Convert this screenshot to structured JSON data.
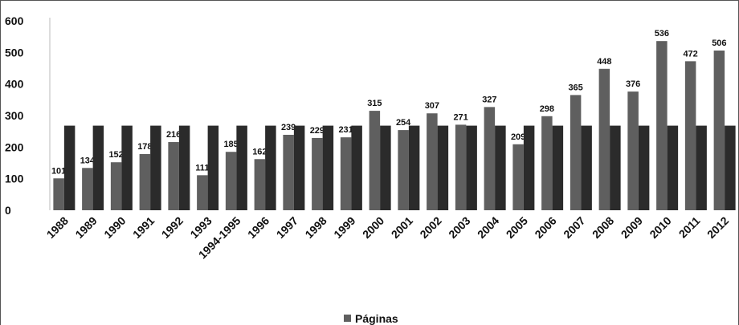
{
  "chart_data": {
    "type": "bar",
    "categories": [
      "1988",
      "1989",
      "1990",
      "1991",
      "1992",
      "1993",
      "1994-1995",
      "1996",
      "1997",
      "1998",
      "1999",
      "2000",
      "2001",
      "2002",
      "2003",
      "2004",
      "2005",
      "2006",
      "2007",
      "2008",
      "2009",
      "2010",
      "2011",
      "2012"
    ],
    "series": [
      {
        "name": "Páginas",
        "color": "#5f5f5f",
        "values": [
          101,
          134,
          152,
          178,
          216,
          111,
          185,
          162,
          239,
          229,
          231,
          315,
          254,
          307,
          271,
          327,
          209,
          298,
          365,
          448,
          376,
          536,
          472,
          506
        ]
      },
      {
        "color": "#2b2b2b",
        "values": [
          268,
          268,
          268,
          268,
          268,
          268,
          268,
          268,
          268,
          268,
          268,
          268,
          268,
          268,
          268,
          268,
          268,
          268,
          268,
          268,
          268,
          268,
          268,
          268
        ]
      }
    ],
    "ylim": [
      0,
      600
    ],
    "yticks": [
      0,
      100,
      200,
      300,
      400,
      500,
      600
    ],
    "grid": false
  }
}
